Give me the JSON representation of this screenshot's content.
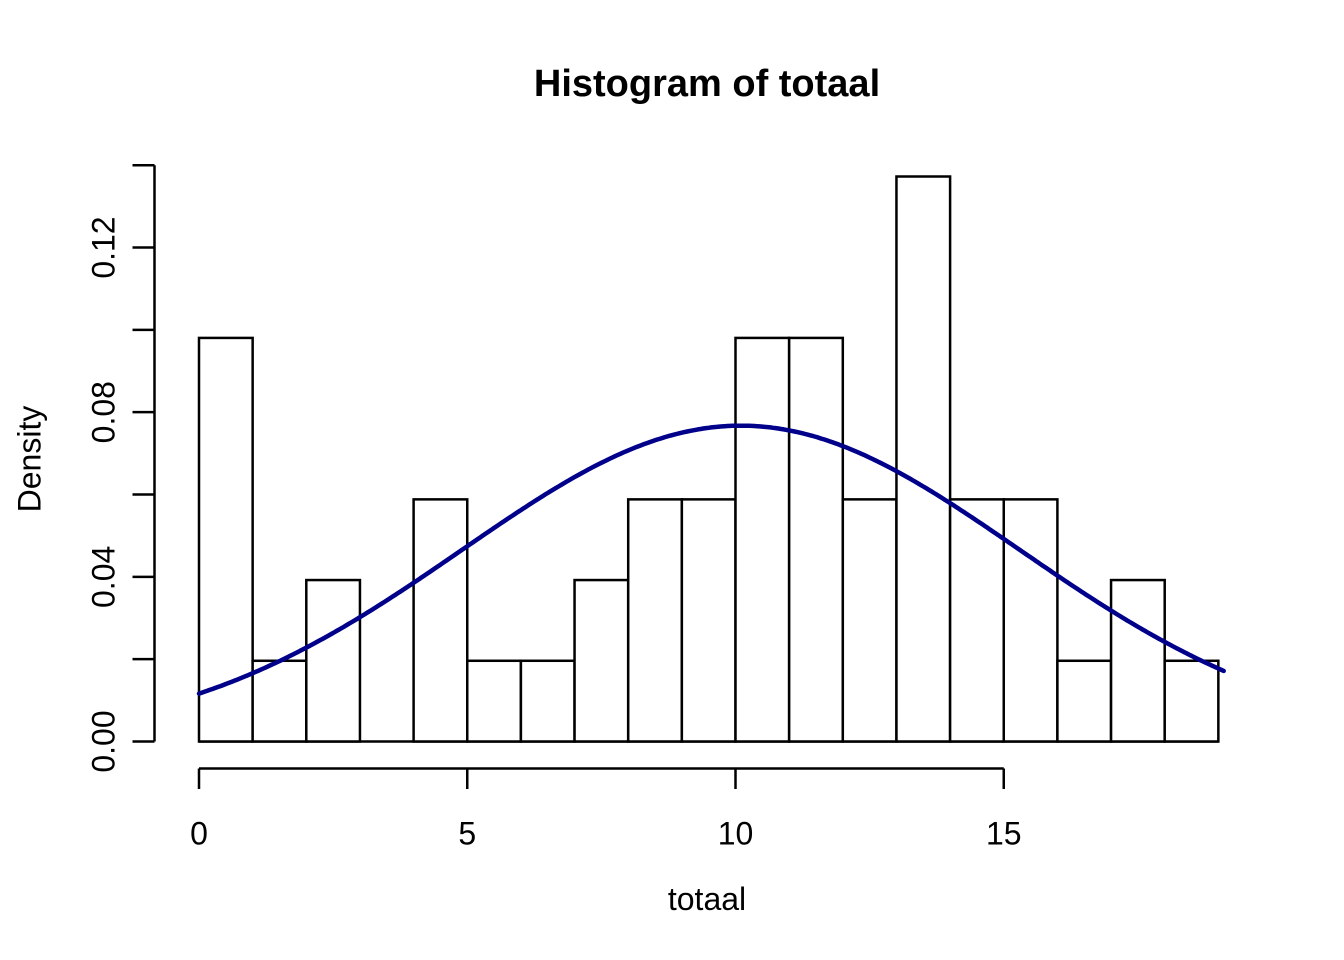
{
  "chart_data": {
    "type": "histogram",
    "title": "Histogram of totaal",
    "xlabel": "totaal",
    "ylabel": "Density",
    "n": 51,
    "bins": {
      "start": 0,
      "width": 1,
      "counts": [
        5,
        1,
        2,
        0,
        3,
        1,
        1,
        2,
        3,
        3,
        5,
        5,
        3,
        7,
        3,
        3,
        1,
        2,
        1
      ],
      "densities": [
        0.09804,
        0.01961,
        0.03922,
        0,
        0.05882,
        0.01961,
        0.01961,
        0.03922,
        0.05882,
        0.05882,
        0.09804,
        0.09804,
        0.05882,
        0.13725,
        0.05882,
        0.05882,
        0.01961,
        0.03922,
        0.01961
      ]
    },
    "x_axis": {
      "tick_values": [
        0,
        5,
        10,
        15
      ],
      "tick_labels": [
        "0",
        "5",
        "10",
        "15"
      ],
      "data_range": [
        0,
        19
      ]
    },
    "y_axis": {
      "tick_values": [
        0,
        0.02,
        0.04,
        0.06,
        0.08,
        0.1,
        0.12,
        0.14
      ],
      "labeled_tick_values": [
        0,
        0.04,
        0.08,
        0.12
      ],
      "tick_labels": [
        "0.00",
        "0.04",
        "0.08",
        "0.12"
      ],
      "range": [
        0,
        0.14
      ]
    },
    "density_curve": {
      "shape": "normal",
      "mean": 10.1,
      "sd": 5.2,
      "peak": 0.0767,
      "x_from": 0,
      "x_to": 19.1,
      "sample_x": [
        0,
        1,
        2,
        3,
        4,
        5,
        6,
        7,
        8,
        9,
        10,
        11,
        12,
        13,
        14,
        15,
        16,
        17,
        18,
        19
      ],
      "sample_y": [
        0.0116,
        0.0166,
        0.0228,
        0.0302,
        0.0386,
        0.0474,
        0.0562,
        0.0642,
        0.0707,
        0.075,
        0.0767,
        0.0756,
        0.0717,
        0.0657,
        0.0579,
        0.0492,
        0.0403,
        0.0318,
        0.0242,
        0.0177
      ],
      "color": "#00008B"
    },
    "colors": {
      "background": "#ffffff",
      "bar_fill": "#ffffff",
      "bar_stroke": "#000000",
      "axis": "#000000",
      "text": "#000000"
    },
    "grid": "off",
    "legend": "none"
  }
}
